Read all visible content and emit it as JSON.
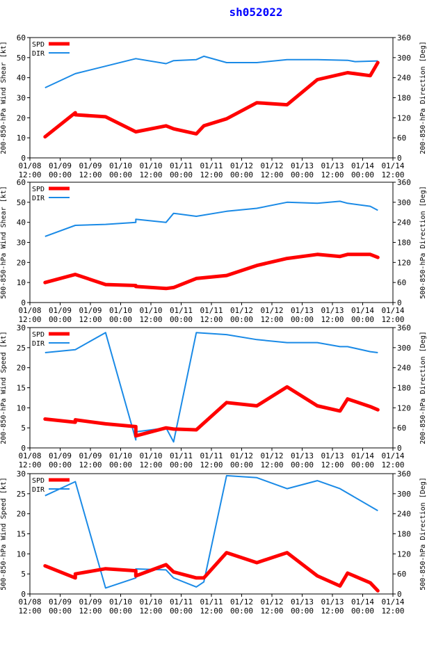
{
  "title": "sh052022",
  "colors": {
    "spd": "#ff0000",
    "dir": "#1a8ae6",
    "axis": "#000000",
    "title": "#0000ff"
  },
  "x_ticks": [
    [
      "01/08",
      "12:00"
    ],
    [
      "01/09",
      "00:00"
    ],
    [
      "01/09",
      "12:00"
    ],
    [
      "01/10",
      "00:00"
    ],
    [
      "01/10",
      "12:00"
    ],
    [
      "01/11",
      "00:00"
    ],
    [
      "01/11",
      "12:00"
    ],
    [
      "01/12",
      "00:00"
    ],
    [
      "01/12",
      "12:00"
    ],
    [
      "01/13",
      "00:00"
    ],
    [
      "01/13",
      "12:00"
    ],
    [
      "01/14",
      "00:00"
    ],
    [
      "01/14",
      "12:00"
    ]
  ],
  "chart_data": [
    {
      "type": "line",
      "ylabel": "200-850-hPa Wind Shear [kt]",
      "y2label": "200-850-hPa Direction [Deg]",
      "ylim": [
        0,
        60
      ],
      "yticks": [
        0,
        10,
        20,
        30,
        40,
        50,
        60
      ],
      "y2lim": [
        0,
        360
      ],
      "y2ticks": [
        0,
        60,
        120,
        180,
        240,
        300,
        360
      ],
      "legend": [
        "SPD",
        "DIR"
      ],
      "spd": [
        [
          6,
          10.5
        ],
        [
          18,
          22.5
        ],
        [
          18,
          21.5
        ],
        [
          30,
          20.5
        ],
        [
          42,
          13
        ],
        [
          54,
          16
        ],
        [
          57,
          14.5
        ],
        [
          66,
          12
        ],
        [
          69,
          16
        ],
        [
          78,
          19.5
        ],
        [
          90,
          27.5
        ],
        [
          102,
          26.5
        ],
        [
          114,
          39
        ],
        [
          126,
          42.5
        ],
        [
          135,
          41
        ],
        [
          138,
          47.5
        ]
      ],
      "dir": [
        [
          6,
          210
        ],
        [
          18,
          252
        ],
        [
          42,
          297
        ],
        [
          54,
          282
        ],
        [
          57,
          291
        ],
        [
          66,
          294
        ],
        [
          69,
          304
        ],
        [
          78,
          285
        ],
        [
          90,
          285
        ],
        [
          102,
          294
        ],
        [
          114,
          294
        ],
        [
          126,
          292
        ],
        [
          129,
          288
        ],
        [
          138,
          290
        ]
      ]
    },
    {
      "type": "line",
      "ylabel": "500-850-hPa Wind Shear [kt]",
      "y2label": "500-850-hPa Direction [Deg]",
      "ylim": [
        0,
        60
      ],
      "yticks": [
        0,
        10,
        20,
        30,
        40,
        50,
        60
      ],
      "y2lim": [
        0,
        360
      ],
      "y2ticks": [
        0,
        60,
        120,
        180,
        240,
        300,
        360
      ],
      "legend": [
        "SPD",
        "DIR"
      ],
      "spd": [
        [
          6,
          10
        ],
        [
          18,
          14
        ],
        [
          30,
          9
        ],
        [
          42,
          8.5
        ],
        [
          42,
          8
        ],
        [
          54,
          7
        ],
        [
          57,
          7.5
        ],
        [
          66,
          12
        ],
        [
          78,
          13.5
        ],
        [
          90,
          18.5
        ],
        [
          102,
          22
        ],
        [
          114,
          24
        ],
        [
          123,
          23
        ],
        [
          126,
          24
        ],
        [
          135,
          24
        ],
        [
          138,
          22.5
        ]
      ],
      "dir": [
        [
          6,
          198
        ],
        [
          18,
          231
        ],
        [
          30,
          234
        ],
        [
          42,
          240
        ],
        [
          42,
          249
        ],
        [
          54,
          240
        ],
        [
          57,
          267
        ],
        [
          66,
          258
        ],
        [
          78,
          273
        ],
        [
          90,
          282
        ],
        [
          102,
          300
        ],
        [
          114,
          297
        ],
        [
          123,
          303
        ],
        [
          126,
          297
        ],
        [
          135,
          288
        ],
        [
          138,
          276
        ]
      ]
    },
    {
      "type": "line",
      "ylabel": "200-850-hPa Wind Speed [kt]",
      "y2label": "200-850-hPa Direction [Deg]",
      "ylim": [
        0,
        30
      ],
      "yticks": [
        0,
        5,
        10,
        15,
        20,
        25,
        30
      ],
      "y2lim": [
        0,
        360
      ],
      "y2ticks": [
        0,
        60,
        120,
        180,
        240,
        300,
        360
      ],
      "legend": [
        "SPD",
        "DIR"
      ],
      "spd": [
        [
          6,
          7.2
        ],
        [
          18,
          6.4
        ],
        [
          18,
          7
        ],
        [
          30,
          6
        ],
        [
          42,
          5.3
        ],
        [
          42,
          3
        ],
        [
          54,
          5
        ],
        [
          57,
          4.7
        ],
        [
          66,
          4.5
        ],
        [
          78,
          11.3
        ],
        [
          90,
          10.5
        ],
        [
          102,
          15.2
        ],
        [
          114,
          10.5
        ],
        [
          123,
          9.2
        ],
        [
          126,
          12.2
        ],
        [
          135,
          10.3
        ],
        [
          138,
          9.5
        ]
      ],
      "dir": [
        [
          6,
          285
        ],
        [
          18,
          294
        ],
        [
          30,
          345
        ],
        [
          42,
          24
        ],
        [
          42,
          48
        ],
        [
          54,
          60
        ],
        [
          57,
          18
        ],
        [
          66,
          345
        ],
        [
          78,
          339
        ],
        [
          90,
          324
        ],
        [
          102,
          315
        ],
        [
          114,
          315
        ],
        [
          123,
          303
        ],
        [
          126,
          303
        ],
        [
          135,
          288
        ],
        [
          138,
          285
        ]
      ]
    },
    {
      "type": "line",
      "ylabel": "500-850-hPa Wind Speed [kt]",
      "y2label": "500-850-hPa Direction [Deg]",
      "ylim": [
        0,
        30
      ],
      "yticks": [
        0,
        5,
        10,
        15,
        20,
        25,
        30
      ],
      "y2lim": [
        0,
        360
      ],
      "y2ticks": [
        0,
        60,
        120,
        180,
        240,
        300,
        360
      ],
      "legend": [
        "SPD",
        "DIR"
      ],
      "spd": [
        [
          6,
          7
        ],
        [
          18,
          4
        ],
        [
          18,
          5
        ],
        [
          30,
          6.3
        ],
        [
          42,
          5.8
        ],
        [
          42,
          4.5
        ],
        [
          54,
          7.3
        ],
        [
          57,
          5.5
        ],
        [
          66,
          4
        ],
        [
          69,
          4
        ],
        [
          78,
          10.3
        ],
        [
          90,
          7.8
        ],
        [
          102,
          10.3
        ],
        [
          114,
          4.5
        ],
        [
          123,
          2
        ],
        [
          126,
          5.2
        ],
        [
          135,
          2.8
        ],
        [
          138,
          0.8
        ]
      ],
      "dir": [
        [
          6,
          294
        ],
        [
          18,
          336
        ],
        [
          30,
          18
        ],
        [
          42,
          48
        ],
        [
          42,
          75
        ],
        [
          54,
          72
        ],
        [
          57,
          48
        ],
        [
          66,
          21
        ],
        [
          69,
          36
        ],
        [
          78,
          354
        ],
        [
          90,
          348
        ],
        [
          102,
          315
        ],
        [
          114,
          339
        ],
        [
          123,
          315
        ],
        [
          138,
          249
        ]
      ]
    }
  ]
}
